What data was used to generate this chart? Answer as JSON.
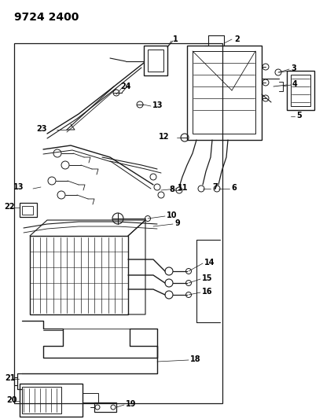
{
  "title": "9724 2400",
  "bg_color": "#ffffff",
  "line_color": "#1a1a1a",
  "text_color": "#000000",
  "title_fontsize": 10,
  "label_fontsize": 7,
  "fig_width": 4.11,
  "fig_height": 5.33,
  "dpi": 100
}
